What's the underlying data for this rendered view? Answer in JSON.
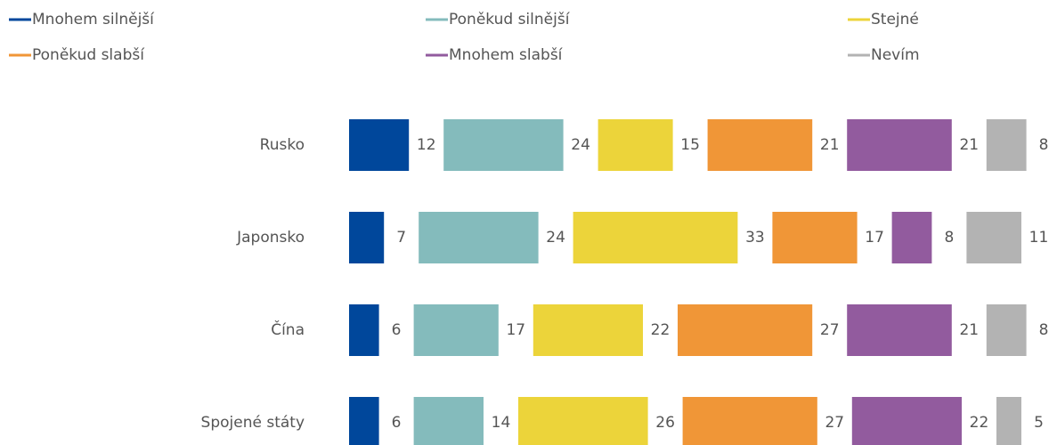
{
  "chart_data": {
    "type": "bar",
    "orientation": "horizontal",
    "categories": [
      "Rusko",
      "Japonsko",
      "Čína",
      "Spojené státy"
    ],
    "series": [
      {
        "name": "Mnohem silnější",
        "color": "#00479b",
        "values": [
          12,
          7,
          6,
          6
        ]
      },
      {
        "name": "Poněkud silnější",
        "color": "#84bbbc",
        "values": [
          24,
          24,
          17,
          14
        ]
      },
      {
        "name": "Stejné",
        "color": "#ecd43a",
        "values": [
          15,
          33,
          22,
          26
        ]
      },
      {
        "name": "Poněkud slabší",
        "color": "#f09637",
        "values": [
          21,
          17,
          27,
          27
        ]
      },
      {
        "name": "Mnohem slabší",
        "color": "#925b9e",
        "values": [
          21,
          8,
          21,
          22
        ]
      },
      {
        "name": "Nevím",
        "color": "#b3b3b3",
        "values": [
          8,
          11,
          8,
          5
        ]
      }
    ]
  }
}
